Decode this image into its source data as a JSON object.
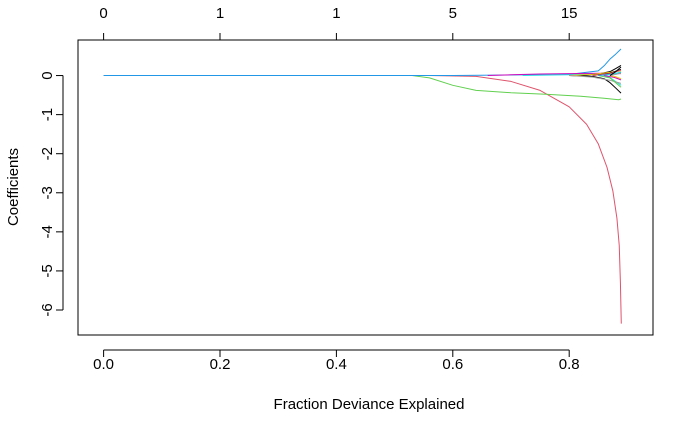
{
  "chart_data": {
    "type": "line",
    "title": "",
    "xlabel": "Fraction Deviance Explained",
    "ylabel": "Coefficients",
    "xlim": [
      -0.044,
      0.944
    ],
    "ylim": [
      -6.64,
      0.91
    ],
    "x_ticks": [
      0.0,
      0.2,
      0.4,
      0.6,
      0.8
    ],
    "x_tick_labels": [
      "0.0",
      "0.2",
      "0.4",
      "0.6",
      "0.8"
    ],
    "y_ticks": [
      0,
      -1,
      -2,
      -3,
      -4,
      -5,
      -6
    ],
    "y_tick_labels": [
      "0",
      "-1",
      "-2",
      "-3",
      "-4",
      "-5",
      "-6"
    ],
    "top_axis": {
      "label": "",
      "ticks": [
        0.0,
        0.2,
        0.4,
        0.6,
        0.8
      ],
      "tick_labels": [
        "0",
        "1",
        "1",
        "5",
        "15"
      ]
    },
    "grid": false,
    "legend": "none",
    "series": [
      {
        "color": "#DF536B",
        "x": [
          0.0,
          0.2,
          0.4,
          0.56,
          0.64,
          0.7,
          0.75,
          0.8,
          0.83,
          0.85,
          0.865,
          0.875,
          0.882,
          0.886,
          0.888,
          0.8895
        ],
        "y": [
          0.0,
          0.0,
          0.0,
          0.0,
          -0.02,
          -0.15,
          -0.38,
          -0.8,
          -1.25,
          -1.75,
          -2.35,
          -2.95,
          -3.65,
          -4.35,
          -5.3,
          -6.35
        ]
      },
      {
        "color": "#61D04F",
        "x": [
          0.0,
          0.2,
          0.4,
          0.53,
          0.56,
          0.6,
          0.64,
          0.7,
          0.76,
          0.82,
          0.86,
          0.885,
          0.889
        ],
        "y": [
          0.0,
          0.0,
          0.0,
          0.0,
          -0.06,
          -0.25,
          -0.38,
          -0.44,
          -0.48,
          -0.53,
          -0.58,
          -0.62,
          -0.6
        ]
      },
      {
        "color": "#2297E6",
        "x": [
          0.0,
          0.2,
          0.4,
          0.6,
          0.8,
          0.85,
          0.86,
          0.87,
          0.88,
          0.889
        ],
        "y": [
          0.0,
          0.0,
          0.0,
          0.0,
          0.03,
          0.12,
          0.25,
          0.42,
          0.55,
          0.68
        ]
      },
      {
        "color": "#000000",
        "x": [
          0.8,
          0.84,
          0.86,
          0.87,
          0.88,
          0.889
        ],
        "y": [
          0.0,
          -0.02,
          -0.08,
          -0.18,
          -0.32,
          -0.45
        ]
      },
      {
        "color": "#000000",
        "x": [
          0.82,
          0.85,
          0.87,
          0.88,
          0.889
        ],
        "y": [
          0.0,
          0.04,
          0.1,
          0.18,
          0.26
        ]
      },
      {
        "color": "#28E2E5",
        "x": [
          0.72,
          0.8,
          0.85,
          0.87,
          0.889
        ],
        "y": [
          0.0,
          0.02,
          0.05,
          -0.05,
          -0.25
        ]
      },
      {
        "color": "#CD0BBC",
        "x": [
          0.66,
          0.7,
          0.75,
          0.8,
          0.85,
          0.889
        ],
        "y": [
          0.0,
          0.02,
          0.04,
          0.05,
          0.06,
          0.05
        ]
      },
      {
        "color": "#F5C710",
        "x": [
          0.8,
          0.84,
          0.87,
          0.889
        ],
        "y": [
          0.0,
          0.03,
          0.08,
          0.12
        ]
      },
      {
        "color": "#9E9E9E",
        "x": [
          0.8,
          0.84,
          0.87,
          0.889
        ],
        "y": [
          0.0,
          -0.04,
          -0.12,
          -0.2
        ]
      },
      {
        "color": "#000000",
        "x": [
          0.84,
          0.87,
          0.889
        ],
        "y": [
          0.0,
          0.06,
          0.16
        ]
      },
      {
        "color": "#DF536B",
        "x": [
          0.84,
          0.87,
          0.889
        ],
        "y": [
          0.0,
          0.05,
          0.14
        ]
      },
      {
        "color": "#61D04F",
        "x": [
          0.85,
          0.87,
          0.889
        ],
        "y": [
          0.0,
          -0.06,
          -0.3
        ]
      },
      {
        "color": "#2297E6",
        "x": [
          0.85,
          0.875,
          0.889
        ],
        "y": [
          0.0,
          0.04,
          0.08
        ]
      },
      {
        "color": "#28E2E5",
        "x": [
          0.86,
          0.878,
          0.889
        ],
        "y": [
          0.0,
          0.05,
          0.09
        ]
      },
      {
        "color": "#CD0BBC",
        "x": [
          0.86,
          0.878,
          0.889
        ],
        "y": [
          0.0,
          -0.05,
          -0.11
        ]
      },
      {
        "color": "#F5C710",
        "x": [
          0.87,
          0.88,
          0.889
        ],
        "y": [
          0.0,
          -0.03,
          -0.08
        ]
      },
      {
        "color": "#9E9E9E",
        "x": [
          0.87,
          0.88,
          0.889
        ],
        "y": [
          0.0,
          0.03,
          0.06
        ]
      },
      {
        "color": "#000000",
        "x": [
          0.87,
          0.88,
          0.889
        ],
        "y": [
          0.0,
          0.1,
          0.22
        ]
      }
    ]
  }
}
